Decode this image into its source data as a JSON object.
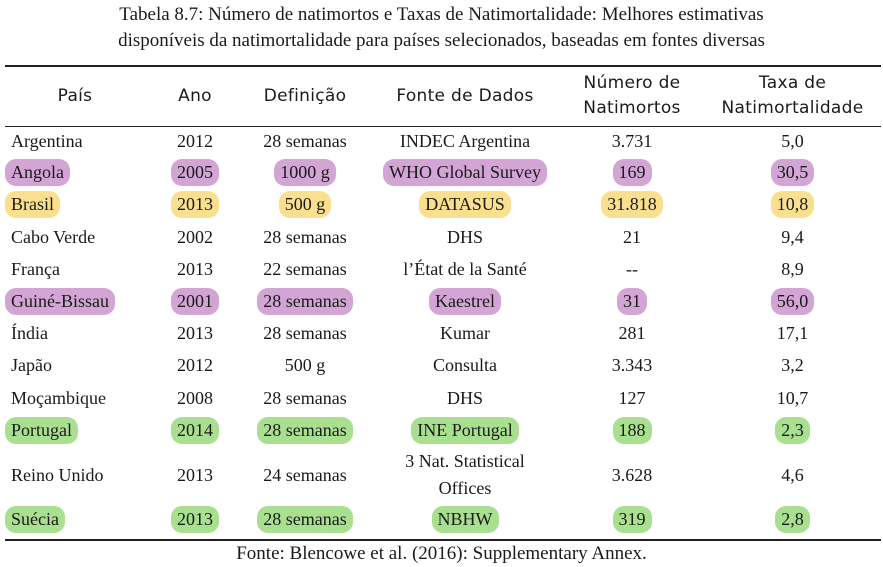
{
  "caption": {
    "line1": "Tabela 8.7: Número de natimortos e Taxas de Natimortalidade: Melhores estimativas",
    "line2": "disponíveis da natimortalidade para países selecionados, baseadas em fontes diversas"
  },
  "headers": {
    "pais": "País",
    "ano": "Ano",
    "definicao": "Definição",
    "fonte": "Fonte de Dados",
    "numero_l1": "Número de",
    "numero_l2": "Natimortos",
    "taxa_l1": "Taxa de",
    "taxa_l2": "Natimortalidade"
  },
  "highlight_colors": {
    "purple": "#d3a5d5",
    "yellow": "#fae08e",
    "green": "#a8e08f"
  },
  "rows": [
    {
      "pais": "Argentina",
      "ano": "2012",
      "definicao": "28 semanas",
      "fonte": "INDEC Argentina",
      "numero": "3.731",
      "taxa": "5,0",
      "highlight": "none"
    },
    {
      "pais": "Angola",
      "ano": "2005",
      "definicao": "1000 g",
      "fonte": "WHO Global Survey",
      "numero": "169",
      "taxa": "30,5",
      "highlight": "purple"
    },
    {
      "pais": "Brasil",
      "ano": "2013",
      "definicao": "500 g",
      "fonte": "DATASUS",
      "numero": "31.818",
      "taxa": "10,8",
      "highlight": "yellow"
    },
    {
      "pais": "Cabo Verde",
      "ano": "2002",
      "definicao": "28 semanas",
      "fonte": "DHS",
      "numero": "21",
      "taxa": "9,4",
      "highlight": "none"
    },
    {
      "pais": "França",
      "ano": "2013",
      "definicao": "22 semanas",
      "fonte": "l’État de la Santé",
      "numero": "--",
      "taxa": "8,9",
      "highlight": "none"
    },
    {
      "pais": "Guiné-Bissau",
      "ano": "2001",
      "definicao": "28 semanas",
      "fonte": "Kaestrel",
      "numero": "31",
      "taxa": "56,0",
      "highlight": "purple"
    },
    {
      "pais": "Índia",
      "ano": "2013",
      "definicao": "28 semanas",
      "fonte": "Kumar",
      "numero": "281",
      "taxa": "17,1",
      "highlight": "none"
    },
    {
      "pais": "Japão",
      "ano": "2012",
      "definicao": "500 g",
      "fonte": "Consulta",
      "numero": "3.343",
      "taxa": "3,2",
      "highlight": "none"
    },
    {
      "pais": "Moçambique",
      "ano": "2008",
      "definicao": "28 semanas",
      "fonte": "DHS",
      "numero": "127",
      "taxa": "10,7",
      "highlight": "none"
    },
    {
      "pais": "Portugal",
      "ano": "2014",
      "definicao": "28 semanas",
      "fonte": "INE Portugal",
      "numero": "188",
      "taxa": "2,3",
      "highlight": "green"
    },
    {
      "pais": "Reino Unido",
      "ano": "2013",
      "definicao": "24 semanas",
      "fonte": "3 Nat. Statistical Offices",
      "numero": "3.628",
      "taxa": "4,6",
      "highlight": "none"
    },
    {
      "pais": "Suécia",
      "ano": "2013",
      "definicao": "28 semanas",
      "fonte": "NBHW",
      "numero": "319",
      "taxa": "2,8",
      "highlight": "green"
    }
  ],
  "footer": "Fonte: Blencowe et al. (2016): Supplementary Annex."
}
